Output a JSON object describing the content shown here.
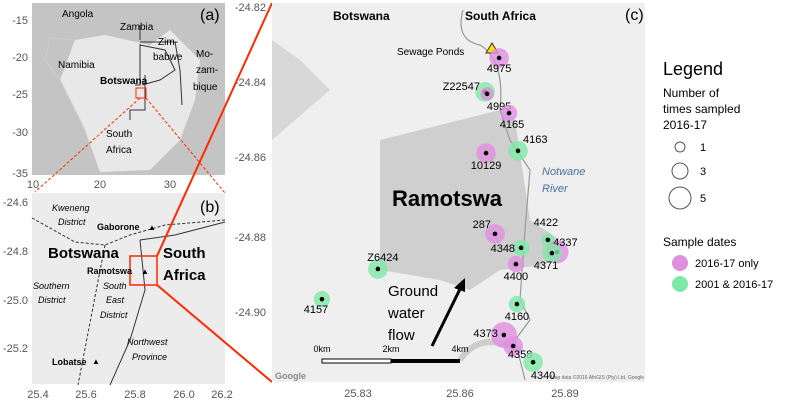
{
  "panel_a": {
    "tag": "(a)",
    "labels": [
      "Angola",
      "Zambia",
      "Zim-",
      "babwe",
      "Mo-",
      "zam-",
      "bique",
      "Namibia",
      "Botswana",
      "South",
      "Africa"
    ],
    "y_ticks": [
      "-15",
      "-20",
      "-25",
      "-30",
      "-35"
    ],
    "x_ticks": [
      "10",
      "20",
      "30"
    ]
  },
  "panel_b": {
    "tag": "(b)",
    "district_labels": [
      "Kweneng",
      "District",
      "Southern",
      "District",
      "South",
      "East",
      "District",
      "Northwest",
      "Province"
    ],
    "countries": [
      "Botswana",
      "South",
      "Africa"
    ],
    "towns": [
      "Gaborone",
      "Ramotswa",
      "Lobatse"
    ],
    "y_ticks": [
      "-24.6",
      "-24.8",
      "-25.0",
      "-25.2"
    ],
    "x_ticks": [
      "25.4",
      "25.6",
      "25.8",
      "26.0",
      "26.2"
    ]
  },
  "panel_c": {
    "tag": "(c)",
    "country_left": "Botswana",
    "country_right": "South Africa",
    "town": "Ramotswa",
    "sewage_label": "Sewage Ponds",
    "river": [
      "Notwane",
      "River"
    ],
    "flow": [
      "Ground",
      "water",
      "flow"
    ],
    "scale": [
      "0km",
      "2km",
      "4km"
    ],
    "attribution": "Map data ©2016 AfriGIS (Pty) Ltd, Google",
    "google": "Google",
    "y_ticks": [
      "-24.82",
      "-24.84",
      "-24.86",
      "-24.88",
      "-24.90"
    ],
    "x_ticks": [
      "25.83",
      "25.86",
      "25.89"
    ]
  },
  "colors": {
    "pink": "#e08ee0",
    "green": "#7fe8a8",
    "map": "#e6e6e6",
    "red": "#ff2a00"
  },
  "samples": [
    {
      "id": "4975",
      "lon": 25.8711,
      "lat": -24.8335,
      "n": 3,
      "group": "2016-17 only"
    },
    {
      "id": "Z22547",
      "lon": 25.867,
      "lat": -24.8425,
      "n": 3,
      "group": "2001 & 2016-17"
    },
    {
      "id": "4995",
      "lon": 25.8676,
      "lat": -24.843,
      "n": 1,
      "group": "2016-17 only"
    },
    {
      "id": "4165",
      "lon": 25.874,
      "lat": -24.8481,
      "n": 2,
      "group": "2016-17 only"
    },
    {
      "id": "4163",
      "lon": 25.8766,
      "lat": -24.8581,
      "n": 3,
      "group": "2001 & 2016-17"
    },
    {
      "id": "10129",
      "lon": 25.8673,
      "lat": -24.8587,
      "n": 3,
      "group": "2016-17 only"
    },
    {
      "id": "287",
      "lon": 25.8699,
      "lat": -24.8801,
      "n": 3,
      "group": "2016-17 only"
    },
    {
      "id": "4348",
      "lon": 25.8775,
      "lat": -24.8838,
      "n": 2,
      "group": "2001 & 2016-17"
    },
    {
      "id": "4422",
      "lon": 25.8853,
      "lat": -24.8817,
      "n": 1,
      "group": "2001 & 2016-17"
    },
    {
      "id": "4337",
      "lon": 25.888,
      "lat": -24.8849,
      "n": 4,
      "group": "2016-17 only"
    },
    {
      "id": "4371",
      "lon": 25.8865,
      "lat": -24.8852,
      "n": 3,
      "group": "2001 & 2016-17"
    },
    {
      "id": "4400",
      "lon": 25.876,
      "lat": -24.8881,
      "n": 2,
      "group": "2016-17 only"
    },
    {
      "id": "Z6424",
      "lon": 25.8358,
      "lat": -24.8894,
      "n": 3,
      "group": "2001 & 2016-17"
    },
    {
      "id": "4157",
      "lon": 25.8195,
      "lat": -24.8974,
      "n": 2,
      "group": "2001 & 2016-17"
    },
    {
      "id": "4160",
      "lon": 25.8763,
      "lat": -24.8987,
      "n": 2,
      "group": "2001 & 2016-17"
    },
    {
      "id": "4373",
      "lon": 25.8725,
      "lat": -24.9069,
      "n": 5,
      "group": "2016-17 only"
    },
    {
      "id": "4358",
      "lon": 25.8752,
      "lat": -24.9098,
      "n": 3,
      "group": "2016-17 only"
    },
    {
      "id": "4340",
      "lon": 25.881,
      "lat": -24.9141,
      "n": 3,
      "group": "2001 & 2016-17"
    }
  ],
  "legend": {
    "title": "Legend",
    "size_title": [
      "Number of",
      "times sampled",
      "2016-17"
    ],
    "sizes": [
      "1",
      "3",
      "5"
    ],
    "color_title": "Sample dates",
    "groups": [
      "2016-17 only",
      "2001 & 2016-17"
    ]
  }
}
